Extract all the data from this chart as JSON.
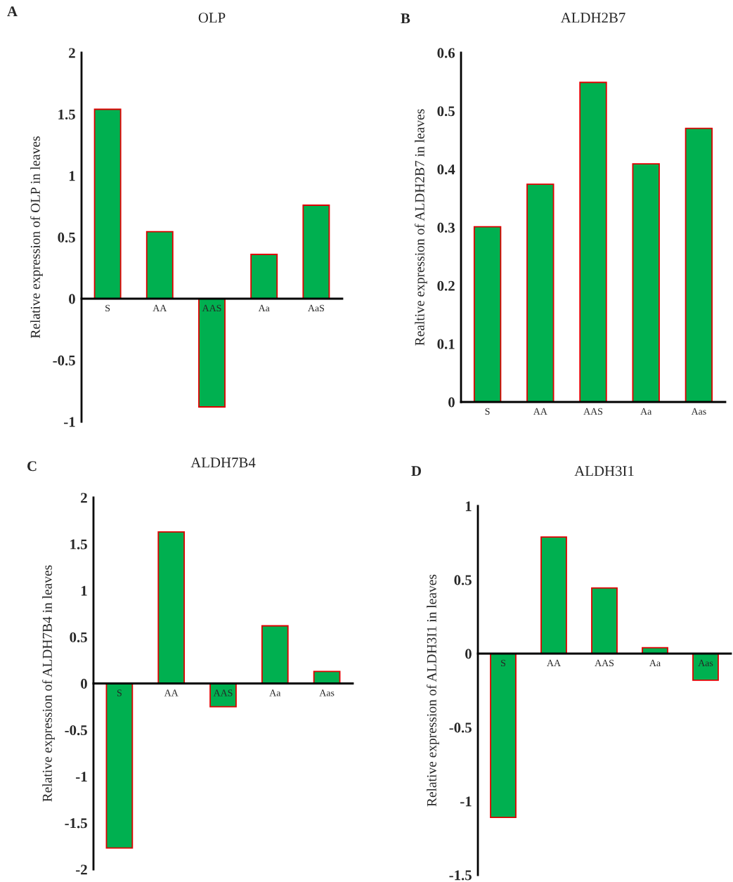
{
  "chart_data": [
    {
      "type": "bar",
      "title": "OLP",
      "ylabel": "Relative expression of OLP in leaves",
      "annotations": [
        "A"
      ],
      "categories": [
        "S",
        "AA",
        "AAS",
        "Aa",
        "AaS"
      ],
      "series": [
        {
          "color": "#00b050",
          "values": [
            1.54,
            0.545,
            -0.88,
            0.36,
            0.76
          ]
        }
      ],
      "ylim": [
        -1,
        2
      ],
      "yticks": [
        -1,
        -0.5,
        0,
        0.5,
        1,
        1.5,
        2
      ],
      "grid": false
    },
    {
      "type": "bar",
      "title": "ALDH2B7",
      "ylabel": "Realtive expression of ALDH2B7 in leaves",
      "annotations": [
        "B"
      ],
      "categories": [
        "S",
        "AA",
        "AAS",
        "Aa",
        "Aas"
      ],
      "series": [
        {
          "color": "#00b050",
          "values": [
            0.301,
            0.374,
            0.549,
            0.409,
            0.47
          ]
        }
      ],
      "ylim": [
        0,
        0.6
      ],
      "yticks": [
        0,
        0.1,
        0.2,
        0.3,
        0.4,
        0.5,
        0.6
      ],
      "grid": false
    },
    {
      "type": "bar",
      "title": "ALDH7B4",
      "ylabel": "Relative expression of ALDH7B4 in leaves",
      "annotations": [
        "C"
      ],
      "categories": [
        "S",
        "AA",
        "AAS",
        "Aa",
        "Aas"
      ],
      "series": [
        {
          "color": "#00b050",
          "values": [
            -1.77,
            1.63,
            -0.25,
            0.62,
            0.13
          ]
        }
      ],
      "ylim": [
        -2,
        2
      ],
      "yticks": [
        -2,
        -1.5,
        -1,
        -0.5,
        0,
        0.5,
        1,
        1.5,
        2
      ],
      "grid": false
    },
    {
      "type": "bar",
      "title": "ALDH3I1",
      "ylabel": "Relative expression of ALDH3I1 in leaves",
      "annotations": [
        "D"
      ],
      "categories": [
        "S",
        "AA",
        "AAS",
        "Aa",
        "Aas"
      ],
      "series": [
        {
          "color": "#00b050",
          "values": [
            -1.11,
            0.79,
            0.445,
            0.04,
            -0.18
          ]
        }
      ],
      "ylim": [
        -1.5,
        1
      ],
      "yticks": [
        -1.5,
        -1,
        -0.5,
        0,
        0.5,
        1
      ],
      "grid": false
    }
  ]
}
